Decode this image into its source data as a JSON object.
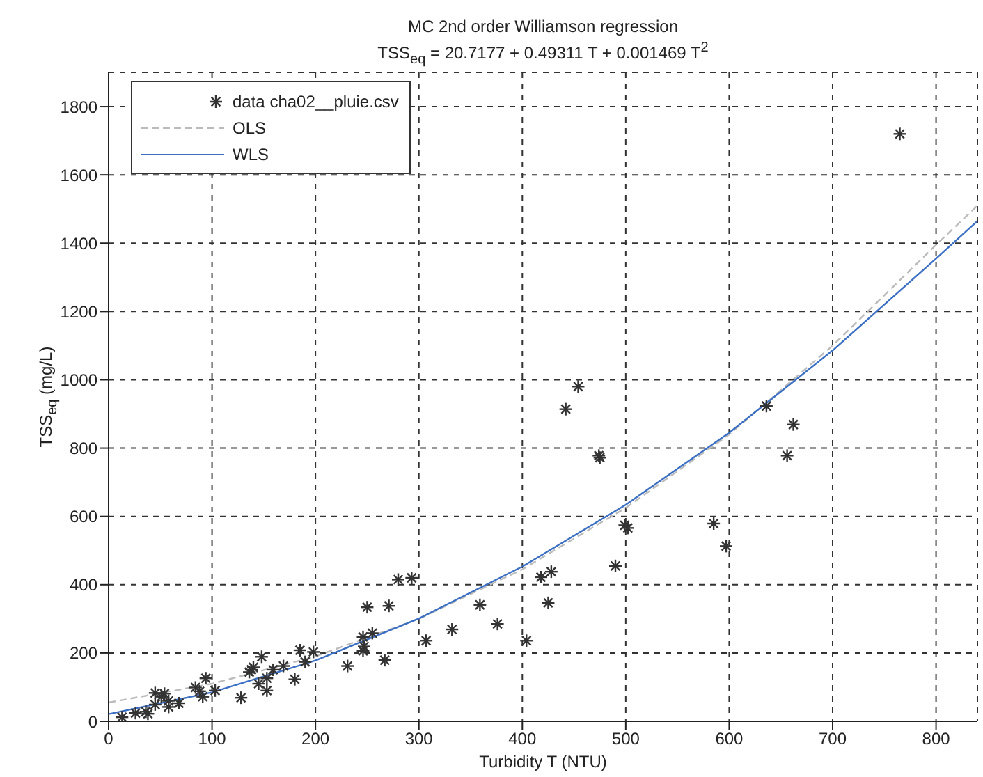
{
  "chart_data": {
    "type": "scatter",
    "title": "MC 2nd order Williamson regression",
    "subtitle": "TSS$_{eq}$ = 20.7177 + 0.49311 T + 0.001469 T$^{2}$",
    "xlabel": "Turbidity T (NTU)",
    "ylabel": "TSS$_{eq}$ (mg/L)",
    "xlim": [
      0,
      840
    ],
    "xticks": [
      0,
      100,
      200,
      300,
      400,
      500,
      600,
      700,
      800
    ],
    "ylim": [
      0,
      1900
    ],
    "yticks": [
      0,
      200,
      400,
      600,
      800,
      1000,
      1200,
      1400,
      1600,
      1800
    ],
    "grid": true,
    "legend": "top left",
    "series": [
      {
        "name": "data cha02__pluie.csv",
        "marker": "cross",
        "color": "#333333",
        "x": [
          13,
          26,
          36,
          38,
          45,
          45,
          51,
          54,
          58,
          58,
          68,
          84,
          88,
          91,
          94,
          103,
          128,
          136,
          138,
          140,
          145,
          148,
          153,
          153,
          159,
          169,
          180,
          185,
          190,
          198,
          231,
          246,
          247,
          246,
          255,
          267,
          250,
          271,
          280,
          293,
          307,
          332,
          359,
          376,
          404,
          418,
          428,
          425,
          475,
          454,
          442,
          474,
          502,
          499,
          490,
          585,
          597,
          636,
          662,
          656,
          765
        ],
        "values": [
          12,
          24,
          28,
          22,
          49,
          83,
          72,
          81,
          42,
          60,
          53,
          99,
          88,
          72,
          126,
          90,
          69,
          144,
          151,
          158,
          110,
          189,
          126,
          90,
          151,
          162,
          123,
          208,
          174,
          203,
          162,
          206,
          219,
          247,
          258,
          179,
          334,
          338,
          415,
          420,
          236,
          269,
          341,
          285,
          236,
          422,
          438,
          347,
          772,
          980,
          914,
          778,
          566,
          574,
          455,
          579,
          513,
          923,
          869,
          778,
          1720
        ]
      },
      {
        "name": "OLS",
        "type": "line",
        "line_style": "dashed",
        "marker": "none",
        "color": "#bbbbbb",
        "x": [
          0,
          100,
          200,
          300,
          400,
          500,
          600,
          700,
          800,
          840
        ],
        "values": [
          55,
          110,
          190,
          300,
          445,
          625,
          840,
          1100,
          1395,
          1510
        ]
      },
      {
        "name": "WLS",
        "type": "line",
        "line_style": "solid",
        "marker": "none",
        "color": "#3a6fc4",
        "x": [
          0,
          100,
          200,
          300,
          400,
          500,
          600,
          700,
          800,
          840
        ],
        "values": [
          21,
          85,
          178,
          301,
          453,
          634,
          845,
          1086,
          1355,
          1465
        ]
      }
    ]
  }
}
